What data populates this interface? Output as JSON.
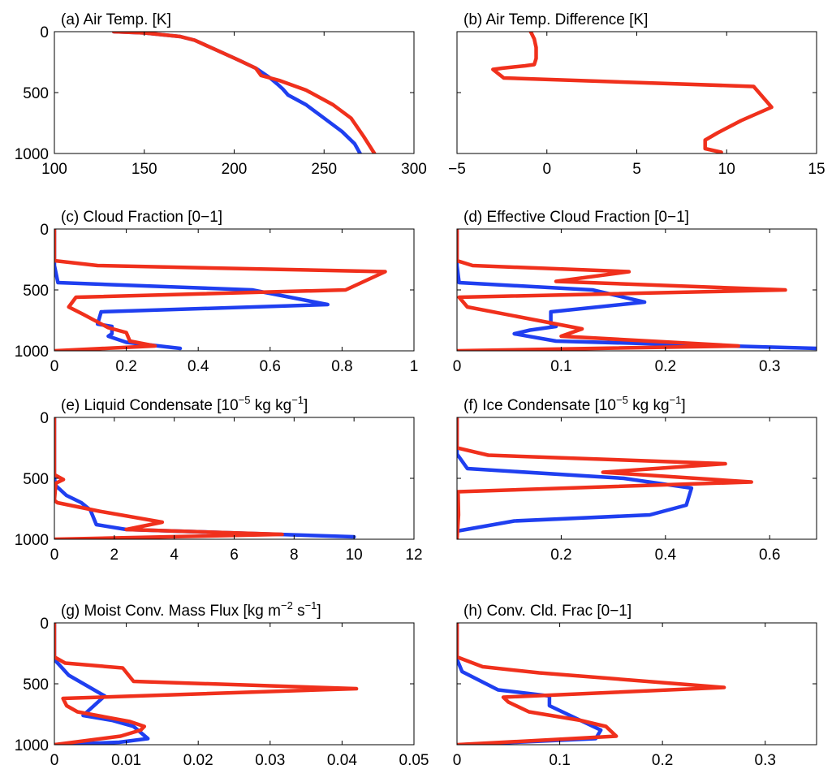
{
  "chart_data": [
    {
      "type": "line",
      "title": "(a) Air Temp. [K]",
      "xlim": [
        100,
        300
      ],
      "xticks": [
        100,
        150,
        200,
        250,
        300
      ],
      "ylim": [
        0,
        1000
      ],
      "yticks": [
        0,
        500,
        1000
      ],
      "y_reversed": true,
      "series": [
        {
          "color": "#1f3ff0",
          "x": [
            133,
            150,
            170,
            178,
            190,
            202,
            212,
            220,
            224,
            227,
            230,
            240,
            250,
            260,
            267,
            270
          ],
          "y": [
            0,
            10,
            40,
            70,
            150,
            230,
            300,
            380,
            430,
            470,
            520,
            600,
            710,
            820,
            920,
            1000
          ]
        },
        {
          "color": "#f0301c",
          "x": [
            133,
            150,
            170,
            178,
            190,
            202,
            212,
            215,
            225,
            240,
            255,
            265,
            272,
            278
          ],
          "y": [
            0,
            10,
            40,
            70,
            150,
            230,
            300,
            360,
            400,
            480,
            600,
            710,
            860,
            1000
          ]
        }
      ]
    },
    {
      "type": "line",
      "title": "(b) Air Temp. Difference [K]",
      "xlim": [
        -5,
        15
      ],
      "xticks": [
        -5,
        0,
        5,
        10,
        15
      ],
      "ylim": [
        0,
        1000
      ],
      "yticks": [
        500,
        1000
      ],
      "y_reversed": true,
      "series": [
        {
          "color": "#f0301c",
          "x": [
            -0.9,
            -0.7,
            -0.6,
            -0.6,
            -0.7,
            -1.2,
            -2.5,
            -3.0,
            -2.4,
            11.5,
            12.5,
            10.8,
            9.5,
            8.8,
            8.8,
            9.7
          ],
          "y": [
            0,
            60,
            130,
            220,
            270,
            280,
            300,
            310,
            380,
            450,
            620,
            730,
            830,
            890,
            960,
            990
          ]
        }
      ]
    },
    {
      "type": "line",
      "title": "(c) Cloud Fraction [0−1]",
      "xlim": [
        0,
        1
      ],
      "xticks": [
        0,
        0.2,
        0.4,
        0.6,
        0.8,
        1
      ],
      "ylim": [
        0,
        1000
      ],
      "yticks": [
        0,
        500,
        1000
      ],
      "y_reversed": true,
      "series": [
        {
          "color": "#1f3ff0",
          "x": [
            0,
            0,
            0.01,
            0.55,
            0.76,
            0.13,
            0.12,
            0.16,
            0.16,
            0.15,
            0.2,
            0.35
          ],
          "y": [
            0,
            300,
            440,
            500,
            620,
            680,
            780,
            800,
            860,
            880,
            930,
            980
          ]
        },
        {
          "color": "#f0301c",
          "x": [
            0,
            0,
            0.12,
            0.92,
            0.81,
            0.06,
            0.04,
            0.08,
            0.15,
            0.2,
            0.21,
            0.28,
            0
          ],
          "y": [
            0,
            260,
            300,
            350,
            500,
            560,
            640,
            700,
            810,
            850,
            920,
            960,
            1000
          ]
        }
      ]
    },
    {
      "type": "line",
      "title": "(d) Effective Cloud Fraction [0−1]",
      "xlim": [
        0,
        0.345
      ],
      "xticks": [
        0,
        0.1,
        0.2,
        0.3
      ],
      "ylim": [
        0,
        1000
      ],
      "yticks": [
        0,
        500,
        1000
      ],
      "y_reversed": true,
      "series": [
        {
          "color": "#1f3ff0",
          "x": [
            0,
            0,
            0.002,
            0.13,
            0.18,
            0.09,
            0.09,
            0.095,
            0.07,
            0.055,
            0.095,
            0.345
          ],
          "y": [
            0,
            300,
            440,
            500,
            600,
            680,
            780,
            800,
            830,
            860,
            920,
            980
          ]
        },
        {
          "color": "#f0301c",
          "x": [
            0,
            0,
            0.015,
            0.165,
            0.095,
            0.315,
            0.002,
            0.01,
            0.12,
            0.1,
            0.27,
            0
          ],
          "y": [
            0,
            260,
            300,
            350,
            430,
            500,
            560,
            640,
            820,
            880,
            960,
            1000
          ]
        }
      ]
    },
    {
      "type": "line",
      "title": "(e) Liquid Condensate [10−5 kg kg−1]",
      "xlim": [
        0,
        12
      ],
      "xticks": [
        0,
        2,
        4,
        6,
        8,
        10,
        12
      ],
      "ylim": [
        0,
        1000
      ],
      "yticks": [
        0,
        500,
        1000
      ],
      "y_reversed": true,
      "series": [
        {
          "color": "#1f3ff0",
          "x": [
            0,
            0,
            0.05,
            0.4,
            0.9,
            1.2,
            1.4,
            2.4,
            10.0
          ],
          "y": [
            0,
            500,
            560,
            640,
            700,
            760,
            880,
            920,
            980
          ]
        },
        {
          "color": "#f0301c",
          "x": [
            0,
            0,
            0.3,
            0.05,
            0,
            0.1,
            1.5,
            3.6,
            2.4,
            7.6,
            0
          ],
          "y": [
            0,
            470,
            510,
            540,
            680,
            700,
            770,
            860,
            920,
            960,
            1000
          ]
        }
      ]
    },
    {
      "type": "line",
      "title": "(f) Ice Condensate [10−5 kg kg−1]",
      "xlim": [
        0,
        0.69
      ],
      "xticks": [
        0.2,
        0.4,
        0.6
      ],
      "ylim": [
        0,
        1000
      ],
      "yticks": [
        0,
        500,
        1000
      ],
      "y_reversed": true,
      "series": [
        {
          "color": "#1f3ff0",
          "x": [
            0,
            0,
            0.02,
            0.32,
            0.45,
            0.44,
            0.37,
            0.11,
            0.004
          ],
          "y": [
            0,
            300,
            420,
            500,
            580,
            720,
            800,
            850,
            930
          ]
        },
        {
          "color": "#f0301c",
          "x": [
            0,
            0,
            0.06,
            0.515,
            0.28,
            0.565,
            0.002,
            0.003,
            0
          ],
          "y": [
            0,
            250,
            310,
            380,
            450,
            530,
            610,
            800,
            1000
          ]
        }
      ]
    },
    {
      "type": "line",
      "title": "(g) Moist Conv. Mass Flux [kg m−2 s−1]",
      "xlim": [
        0,
        0.05
      ],
      "xticks": [
        0,
        0.01,
        0.02,
        0.03,
        0.04,
        0.05
      ],
      "ylim": [
        0,
        1000
      ],
      "yticks": [
        0,
        500,
        1000
      ],
      "y_reversed": true,
      "series": [
        {
          "color": "#1f3ff0",
          "x": [
            0,
            0,
            0.002,
            0.007,
            0.004,
            0.008,
            0.011,
            0.013,
            0.009,
            0
          ],
          "y": [
            0,
            300,
            430,
            600,
            760,
            800,
            850,
            950,
            980,
            1000
          ]
        },
        {
          "color": "#f0301c",
          "x": [
            0,
            0,
            0.0015,
            0.0095,
            0.011,
            0.042,
            0.0012,
            0.0017,
            0.0032,
            0.0105,
            0.0125,
            0.012,
            0.0092,
            0
          ],
          "y": [
            0,
            280,
            330,
            370,
            480,
            540,
            620,
            680,
            730,
            810,
            850,
            880,
            930,
            1000
          ]
        }
      ]
    },
    {
      "type": "line",
      "title": "(h) Conv. Cld. Frac [0−1]",
      "xlim": [
        0,
        0.35
      ],
      "xticks": [
        0,
        0.1,
        0.2,
        0.3
      ],
      "ylim": [
        0,
        1000
      ],
      "yticks": [
        0,
        500,
        1000
      ],
      "y_reversed": true,
      "series": [
        {
          "color": "#1f3ff0",
          "x": [
            0,
            0,
            0.005,
            0.04,
            0.09,
            0.09,
            0.12,
            0.14,
            0.135,
            0.003
          ],
          "y": [
            0,
            300,
            400,
            550,
            600,
            680,
            800,
            880,
            950,
            1000
          ]
        },
        {
          "color": "#f0301c",
          "x": [
            0,
            0,
            0.025,
            0.08,
            0.26,
            0.045,
            0.05,
            0.07,
            0.12,
            0.145,
            0.155,
            0.09,
            0
          ],
          "y": [
            0,
            280,
            360,
            410,
            530,
            610,
            650,
            730,
            800,
            850,
            930,
            960,
            1000
          ]
        }
      ]
    }
  ]
}
